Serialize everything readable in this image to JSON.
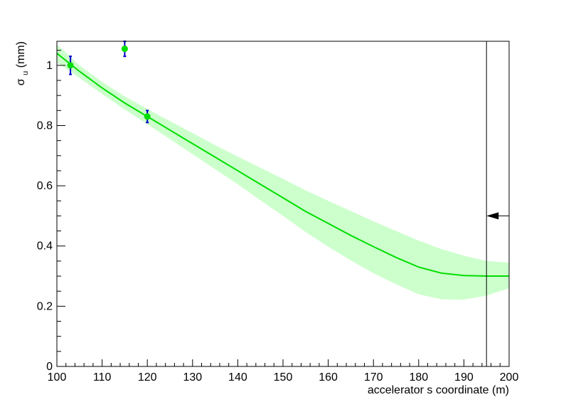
{
  "chart_data": {
    "type": "line",
    "title": "",
    "xlabel": "accelerator s coordinate (m)",
    "ylabel": {
      "symbol": "σ",
      "subscript": "u",
      "unit": "(mm)"
    },
    "xlim": [
      100,
      200
    ],
    "ylim": [
      0,
      1.08
    ],
    "xticks": [
      100,
      110,
      120,
      130,
      140,
      150,
      160,
      170,
      180,
      190,
      200
    ],
    "xtick_labels": [
      "100",
      "110",
      "120",
      "130",
      "140",
      "150",
      "160",
      "170",
      "180",
      "190",
      "200"
    ],
    "yticks": [
      0,
      0.2,
      0.4,
      0.6,
      0.8,
      1
    ],
    "ytick_labels": [
      "0",
      "0.2",
      "0.4",
      "0.6",
      "0.8",
      "1"
    ],
    "grid": false,
    "series": [
      {
        "kind": "fit-line",
        "x": [
          100,
          105,
          110,
          115,
          120,
          125,
          130,
          135,
          140,
          145,
          150,
          155,
          160,
          165,
          170,
          175,
          180,
          185,
          190,
          195,
          200
        ],
        "y": [
          1.04,
          0.98,
          0.925,
          0.875,
          0.83,
          0.785,
          0.74,
          0.695,
          0.65,
          0.605,
          0.56,
          0.515,
          0.475,
          0.435,
          0.398,
          0.362,
          0.33,
          0.31,
          0.302,
          0.3,
          0.3
        ],
        "color": "#00dd00"
      },
      {
        "kind": "confidence-band",
        "x": [
          100,
          105,
          110,
          115,
          120,
          125,
          130,
          135,
          140,
          145,
          150,
          155,
          160,
          165,
          170,
          175,
          180,
          185,
          190,
          195,
          200
        ],
        "upper": [
          1.07,
          1.0,
          0.945,
          0.897,
          0.855,
          0.815,
          0.775,
          0.735,
          0.697,
          0.66,
          0.623,
          0.585,
          0.55,
          0.516,
          0.482,
          0.45,
          0.418,
          0.39,
          0.368,
          0.35,
          0.345
        ],
        "lower": [
          1.01,
          0.958,
          0.905,
          0.853,
          0.805,
          0.755,
          0.705,
          0.655,
          0.605,
          0.552,
          0.5,
          0.447,
          0.398,
          0.352,
          0.31,
          0.273,
          0.24,
          0.223,
          0.222,
          0.235,
          0.26
        ],
        "color": "#ccffcc"
      },
      {
        "kind": "measurements",
        "x": [
          103,
          115,
          120
        ],
        "y": [
          1.0,
          1.055,
          0.83
        ],
        "yerr": [
          0.03,
          0.025,
          0.02
        ],
        "marker_color": "#00dd00",
        "error_color": "#0000cc"
      }
    ],
    "annotations": [
      {
        "kind": "vertical-line",
        "x": 195,
        "color": "#000000"
      },
      {
        "kind": "arrow",
        "x_from": 200,
        "x_to": 195,
        "y": 0.5,
        "color": "#000000"
      }
    ]
  }
}
